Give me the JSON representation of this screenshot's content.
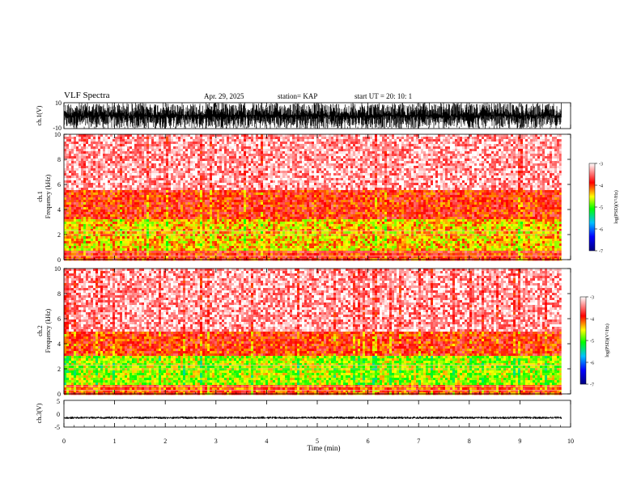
{
  "header": {
    "title": "VLF Spectra",
    "date": "Apr. 29, 2025",
    "station": "station= KAP",
    "start": "start  UT =   20: 10: 1"
  },
  "chart_data": [
    {
      "type": "line",
      "panel": "waveform-ch1",
      "ylabel": "ch.1(V)",
      "ylim": [
        -10,
        10
      ],
      "yticks": [
        "10",
        "-10"
      ],
      "xlim": [
        0,
        10
      ],
      "data_extent_min": 9.82,
      "amplitude_range": [
        -10,
        10
      ],
      "note_values": "saturated broadband noise"
    },
    {
      "type": "heatmap",
      "panel": "spectrogram-ch1",
      "ylabel": "ch.1\nFrequency (kHz)",
      "ylim": [
        0,
        10
      ],
      "yticks": [
        "0",
        "2",
        "4",
        "6",
        "8",
        "10"
      ],
      "xlim": [
        0,
        10
      ],
      "data_extent_min": 9.82,
      "colorbar": {
        "label": "log(PSD)(V²/Hz)",
        "range": [
          -7,
          -3
        ],
        "ticks": [
          "-3",
          "-4",
          "-5",
          "-6",
          "-7"
        ],
        "stops": [
          "#000080",
          "#0000ff",
          "#00c0ff",
          "#00ff00",
          "#ffff00",
          "#ff0000",
          "#ffffff"
        ]
      },
      "bands_khz": [
        {
          "from": 0,
          "to": 0.8,
          "level": -3.9
        },
        {
          "from": 0.8,
          "to": 3.2,
          "level": -4.4
        },
        {
          "from": 3.2,
          "to": 5.5,
          "level": -3.9
        },
        {
          "from": 5.5,
          "to": 10,
          "level": -3.3
        }
      ]
    },
    {
      "type": "heatmap",
      "panel": "spectrogram-ch2",
      "ylabel": "ch.2\nFrequency (kHz)",
      "ylim": [
        0,
        10
      ],
      "yticks": [
        "0",
        "2",
        "4",
        "6",
        "8",
        "10"
      ],
      "xlim": [
        0,
        10
      ],
      "data_extent_min": 9.82,
      "colorbar": {
        "label": "log(PSD)(V²/Hz)",
        "range": [
          -7,
          -3
        ],
        "ticks": [
          "-3",
          "-4",
          "-5",
          "-6",
          "-7"
        ],
        "stops": [
          "#000080",
          "#0000ff",
          "#00c0ff",
          "#00ff00",
          "#ffff00",
          "#ff0000",
          "#ffffff"
        ]
      },
      "bands_khz": [
        {
          "from": 0,
          "to": 0.8,
          "level": -4.0
        },
        {
          "from": 0.8,
          "to": 3.0,
          "level": -4.7
        },
        {
          "from": 3.0,
          "to": 5.0,
          "level": -3.9
        },
        {
          "from": 5.0,
          "to": 10,
          "level": -3.3
        }
      ]
    },
    {
      "type": "line",
      "panel": "waveform-ch3",
      "ylabel": "ch.3(V)",
      "ylim": [
        -5,
        5
      ],
      "yticks": [
        "5",
        "0",
        "-5"
      ],
      "xlim": [
        0,
        10
      ],
      "data_extent_min": 9.82,
      "amplitude_range": [
        -2,
        -1
      ],
      "xlabel": "Time (min)",
      "xticks": [
        "0",
        "1",
        "2",
        "3",
        "4",
        "5",
        "6",
        "7",
        "8",
        "9",
        "10"
      ]
    }
  ]
}
